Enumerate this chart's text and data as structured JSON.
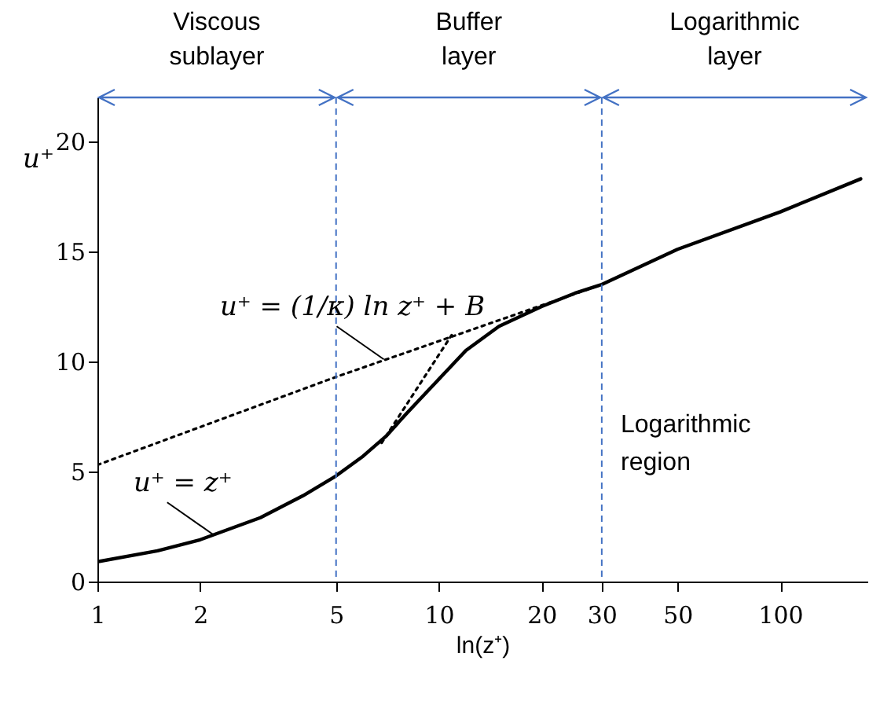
{
  "chart_data": {
    "type": "line",
    "xlabel": "ln(z⁺)",
    "ylabel": "u⁺",
    "log": "x",
    "grid": false,
    "marker": "none",
    "xlim": [
      1,
      180
    ],
    "xticks": [
      1,
      2,
      5,
      10,
      20,
      30,
      50,
      100
    ],
    "ylim": [
      0,
      22
    ],
    "yticks": [
      0,
      5,
      10,
      15,
      20
    ],
    "series": [
      {
        "color": "#000000",
        "line_style": "solid",
        "x": [
          1,
          1.5,
          2,
          3,
          4,
          5,
          6,
          7,
          8,
          10,
          12,
          15,
          20,
          25,
          30,
          50,
          100,
          172
        ],
        "values": [
          0.9,
          1.4,
          1.9,
          2.9,
          3.9,
          4.8,
          5.7,
          6.6,
          7.6,
          9.2,
          10.5,
          11.6,
          12.5,
          13.1,
          13.5,
          15.1,
          16.8,
          18.3
        ]
      },
      {
        "color": "#000000",
        "line_style": "dotted",
        "x": [
          1,
          5,
          30
        ],
        "values": [
          5.3,
          9.3,
          13.5
        ]
      },
      {
        "color": "#000000",
        "line_style": "dotted",
        "x": [
          6.8,
          10.9
        ],
        "values": [
          6.3,
          11.2
        ]
      }
    ],
    "ref_lines": [
      {
        "axis": "x",
        "value": 5,
        "color": "#4472c4",
        "line_style": "dashed"
      },
      {
        "axis": "x",
        "value": 30,
        "color": "#4472c4",
        "line_style": "dashed"
      }
    ],
    "annotations": [
      "Viscous sublayer",
      "Buffer layer",
      "Logarithmic layer",
      {
        "text": "u⁺ = (1/κ) ln z⁺ + B",
        "x": 6.9,
        "y": 10.1
      },
      {
        "text": "u⁺ = z⁺",
        "x": 2.2,
        "y": 2.1
      },
      "Logarithmic region"
    ]
  }
}
